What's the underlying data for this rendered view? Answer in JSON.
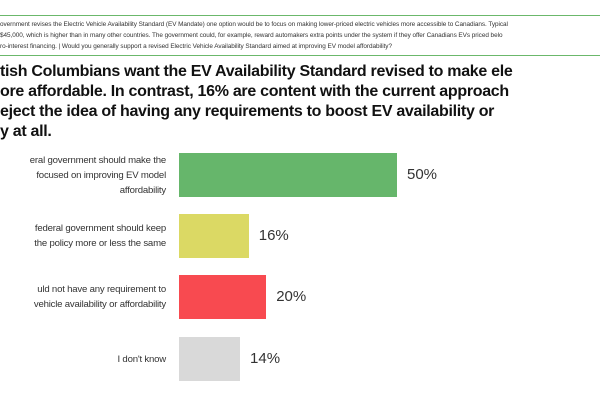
{
  "question": {
    "lines": [
      "overnment revises the Electric Vehicle Availability Standard (EV Mandate) one option would be to focus on making lower-priced electric vehicles more accessible to Canadians. Typical",
      "$45,000, which is higher than in many other countries. The government could, for example, reward automakers extra points under the system if they offer Canadians EVs priced belo",
      "ro-interest financing. | Would you generally support a revised Electric Vehicle Availability Standard aimed at improving EV model affordability?"
    ]
  },
  "headline": {
    "lines": [
      "tish Columbians want the EV Availability Standard revised to make ele",
      "ore affordable. In contrast, 16% are content with the current approach",
      "eject the idea of having any requirements to boost EV availability or",
      "y at all."
    ]
  },
  "chart_data": {
    "type": "bar",
    "orientation": "horizontal",
    "categories": [
      [
        "eral government should make the",
        "focused on improving EV model",
        "affordability"
      ],
      [
        "federal government should keep",
        "the policy more or less the same"
      ],
      [
        "uld not have any requirement to",
        "vehicle availability or affordability"
      ],
      [
        "I don't know"
      ]
    ],
    "values": [
      50,
      16,
      20,
      14
    ],
    "value_labels": [
      "50%",
      "16%",
      "20%",
      "14%"
    ],
    "colors": [
      "#66b66b",
      "#dbd964",
      "#f84a50",
      "#d9d9d9"
    ],
    "xlim": [
      0,
      100
    ],
    "grid": false
  }
}
